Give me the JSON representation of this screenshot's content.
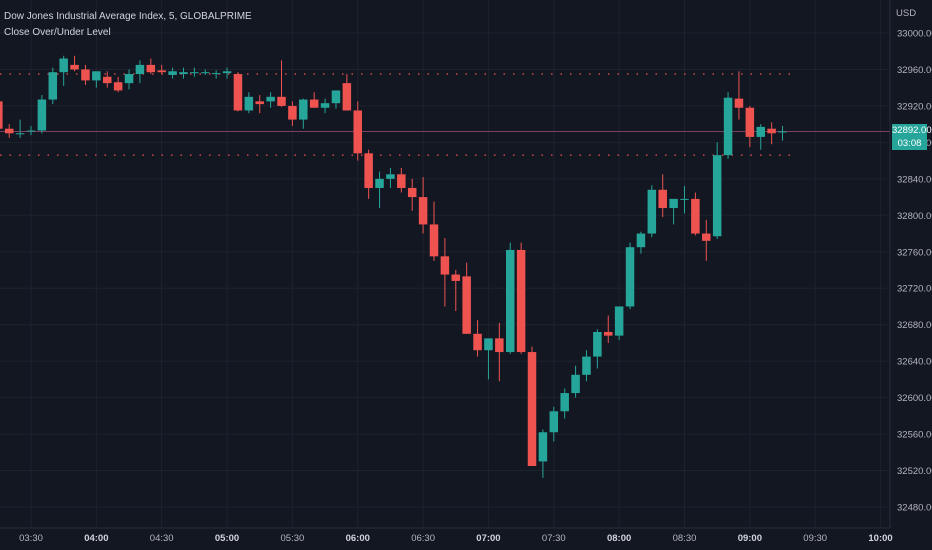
{
  "legend": {
    "symbol_line": "Dow Jones Industrial Average Index, 5, GLOBALPRIME",
    "indicator_line": "Close Over/Under Level"
  },
  "price_axis": {
    "currency": "USD",
    "ticks": [
      33000,
      32960,
      32920,
      32880,
      32840,
      32800,
      32760,
      32720,
      32680,
      32640,
      32600,
      32560,
      32520,
      32480
    ],
    "tick_labels": [
      "33000.00",
      "32960.00",
      "32920.00",
      "32880.00",
      "32840.00",
      "32800.00",
      "32760.00",
      "32720.00",
      "32680.00",
      "32640.00",
      "32600.00",
      "32560.00",
      "32520.00",
      "32480.00"
    ]
  },
  "time_axis": {
    "labels": [
      {
        "t": "03:30",
        "bold": false
      },
      {
        "t": "04:00",
        "bold": true
      },
      {
        "t": "04:30",
        "bold": false
      },
      {
        "t": "05:00",
        "bold": true
      },
      {
        "t": "05:30",
        "bold": false
      },
      {
        "t": "06:00",
        "bold": true
      },
      {
        "t": "06:30",
        "bold": false
      },
      {
        "t": "07:00",
        "bold": true
      },
      {
        "t": "07:30",
        "bold": false
      },
      {
        "t": "08:00",
        "bold": true
      },
      {
        "t": "08:30",
        "bold": false
      },
      {
        "t": "09:00",
        "bold": true
      },
      {
        "t": "09:30",
        "bold": false
      },
      {
        "t": "10:00",
        "bold": true
      }
    ]
  },
  "last_price": {
    "price_label": "32892.00",
    "countdown": "03:08",
    "value": 32892,
    "color": "#26a69a"
  },
  "colors": {
    "up": "#26a69a",
    "down": "#ef5350",
    "background": "#131722",
    "grid": "#1e222d",
    "level_dots": "#ef5350",
    "last_line": "#7b3f62"
  },
  "chart_data": {
    "type": "candlestick",
    "interval": "5",
    "levels": [
      32955,
      32866
    ],
    "first_candle_time": "03:15",
    "ylim": [
      32470,
      33010
    ],
    "grid": true,
    "candles": [
      {
        "o": 32925,
        "h": 32930,
        "l": 32890,
        "c": 32895
      },
      {
        "o": 32895,
        "h": 32900,
        "l": 32885,
        "c": 32890
      },
      {
        "o": 32890,
        "h": 32905,
        "l": 32885,
        "c": 32890
      },
      {
        "o": 32892,
        "h": 32898,
        "l": 32888,
        "c": 32893
      },
      {
        "o": 32893,
        "h": 32932,
        "l": 32890,
        "c": 32927
      },
      {
        "o": 32927,
        "h": 32962,
        "l": 32922,
        "c": 32957
      },
      {
        "o": 32957,
        "h": 32975,
        "l": 32942,
        "c": 32972
      },
      {
        "o": 32965,
        "h": 32975,
        "l": 32958,
        "c": 32960
      },
      {
        "o": 32960,
        "h": 32965,
        "l": 32943,
        "c": 32948
      },
      {
        "o": 32948,
        "h": 32955,
        "l": 32940,
        "c": 32958
      },
      {
        "o": 32952,
        "h": 32958,
        "l": 32940,
        "c": 32945
      },
      {
        "o": 32946,
        "h": 32952,
        "l": 32935,
        "c": 32937
      },
      {
        "o": 32945,
        "h": 32960,
        "l": 32938,
        "c": 32955
      },
      {
        "o": 32955,
        "h": 32970,
        "l": 32945,
        "c": 32965
      },
      {
        "o": 32965,
        "h": 32972,
        "l": 32955,
        "c": 32957
      },
      {
        "o": 32959,
        "h": 32965,
        "l": 32955,
        "c": 32957
      },
      {
        "o": 32954,
        "h": 32962,
        "l": 32950,
        "c": 32958
      },
      {
        "o": 32955,
        "h": 32962,
        "l": 32950,
        "c": 32957
      },
      {
        "o": 32956,
        "h": 32962,
        "l": 32952,
        "c": 32957
      },
      {
        "o": 32957,
        "h": 32960,
        "l": 32954,
        "c": 32957
      },
      {
        "o": 32956,
        "h": 32959,
        "l": 32950,
        "c": 32956
      },
      {
        "o": 32956,
        "h": 32962,
        "l": 32950,
        "c": 32958
      },
      {
        "o": 32955,
        "h": 32957,
        "l": 32914,
        "c": 32915
      },
      {
        "o": 32915,
        "h": 32935,
        "l": 32912,
        "c": 32930
      },
      {
        "o": 32925,
        "h": 32932,
        "l": 32912,
        "c": 32922
      },
      {
        "o": 32925,
        "h": 32935,
        "l": 32918,
        "c": 32930
      },
      {
        "o": 32930,
        "h": 32970,
        "l": 32919,
        "c": 32920
      },
      {
        "o": 32920,
        "h": 32925,
        "l": 32898,
        "c": 32905
      },
      {
        "o": 32905,
        "h": 32928,
        "l": 32895,
        "c": 32927
      },
      {
        "o": 32927,
        "h": 32935,
        "l": 32918,
        "c": 32918
      },
      {
        "o": 32918,
        "h": 32928,
        "l": 32912,
        "c": 32923
      },
      {
        "o": 32923,
        "h": 32935,
        "l": 32917,
        "c": 32937
      },
      {
        "o": 32945,
        "h": 32955,
        "l": 32915,
        "c": 32915
      },
      {
        "o": 32915,
        "h": 32925,
        "l": 32860,
        "c": 32868
      },
      {
        "o": 32868,
        "h": 32872,
        "l": 32818,
        "c": 32830
      },
      {
        "o": 32830,
        "h": 32848,
        "l": 32808,
        "c": 32840
      },
      {
        "o": 32840,
        "h": 32852,
        "l": 32830,
        "c": 32845
      },
      {
        "o": 32845,
        "h": 32852,
        "l": 32825,
        "c": 32830
      },
      {
        "o": 32830,
        "h": 32840,
        "l": 32805,
        "c": 32820
      },
      {
        "o": 32820,
        "h": 32842,
        "l": 32780,
        "c": 32790
      },
      {
        "o": 32790,
        "h": 32815,
        "l": 32750,
        "c": 32755
      },
      {
        "o": 32755,
        "h": 32775,
        "l": 32700,
        "c": 32735
      },
      {
        "o": 32735,
        "h": 32740,
        "l": 32695,
        "c": 32728
      },
      {
        "o": 32733,
        "h": 32748,
        "l": 32670,
        "c": 32670
      },
      {
        "o": 32670,
        "h": 32685,
        "l": 32645,
        "c": 32652
      },
      {
        "o": 32652,
        "h": 32665,
        "l": 32620,
        "c": 32665
      },
      {
        "o": 32665,
        "h": 32682,
        "l": 32618,
        "c": 32650
      },
      {
        "o": 32650,
        "h": 32770,
        "l": 32648,
        "c": 32762
      },
      {
        "o": 32762,
        "h": 32770,
        "l": 32648,
        "c": 32650
      },
      {
        "o": 32650,
        "h": 32656,
        "l": 32525,
        "c": 32525
      },
      {
        "o": 32530,
        "h": 32565,
        "l": 32512,
        "c": 32562
      },
      {
        "o": 32562,
        "h": 32590,
        "l": 32552,
        "c": 32585
      },
      {
        "o": 32585,
        "h": 32610,
        "l": 32577,
        "c": 32605
      },
      {
        "o": 32605,
        "h": 32635,
        "l": 32600,
        "c": 32625
      },
      {
        "o": 32625,
        "h": 32652,
        "l": 32618,
        "c": 32645
      },
      {
        "o": 32645,
        "h": 32675,
        "l": 32632,
        "c": 32672
      },
      {
        "o": 32672,
        "h": 32690,
        "l": 32660,
        "c": 32668
      },
      {
        "o": 32668,
        "h": 32700,
        "l": 32663,
        "c": 32700
      },
      {
        "o": 32700,
        "h": 32770,
        "l": 32697,
        "c": 32765
      },
      {
        "o": 32765,
        "h": 32782,
        "l": 32758,
        "c": 32780
      },
      {
        "o": 32780,
        "h": 32833,
        "l": 32776,
        "c": 32828
      },
      {
        "o": 32828,
        "h": 32845,
        "l": 32798,
        "c": 32808
      },
      {
        "o": 32808,
        "h": 32818,
        "l": 32790,
        "c": 32818
      },
      {
        "o": 32818,
        "h": 32832,
        "l": 32802,
        "c": 32818
      },
      {
        "o": 32818,
        "h": 32825,
        "l": 32778,
        "c": 32780
      },
      {
        "o": 32780,
        "h": 32795,
        "l": 32750,
        "c": 32772
      },
      {
        "o": 32777,
        "h": 32880,
        "l": 32774,
        "c": 32866
      },
      {
        "o": 32866,
        "h": 32935,
        "l": 32862,
        "c": 32929
      },
      {
        "o": 32928,
        "h": 32958,
        "l": 32905,
        "c": 32918
      },
      {
        "o": 32918,
        "h": 32920,
        "l": 32875,
        "c": 32886
      },
      {
        "o": 32886,
        "h": 32900,
        "l": 32872,
        "c": 32897
      },
      {
        "o": 32895,
        "h": 32902,
        "l": 32878,
        "c": 32890
      },
      {
        "o": 32892,
        "h": 32898,
        "l": 32882,
        "c": 32892
      }
    ]
  }
}
